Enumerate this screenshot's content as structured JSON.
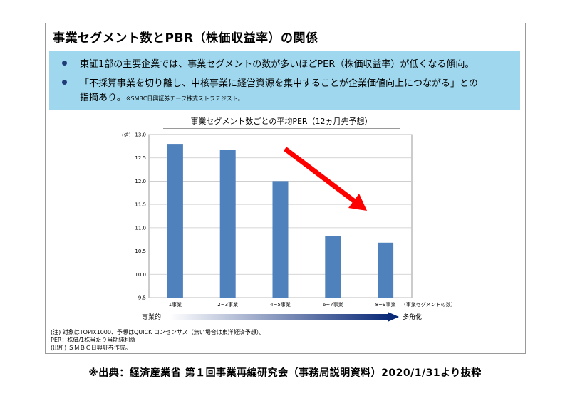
{
  "title": "事業セグメント数とPBR（株価収益率）の関係",
  "bullets": [
    "東証1部の主要企業では、事業セグメントの数が多いほどPER（株価収益率）が低くなる傾向。",
    "「不採算事業を切り離し、中核事業に経営資源を集中することが企業価値向上につながる」との",
    "指摘あり。"
  ],
  "bullet_note": "※SMBC日興証券チーフ株式ストラテジスト。",
  "arrow_left_label": "専業的",
  "arrow_right_label": "多角化",
  "notes": [
    "(注)  対象はTOPIX1000、予想はQUICK コンセンサス（無い場合は東洋経済予想）。",
    "       PER：株価/1株当たり当期純利益",
    "(出所)  ＳＭＢＣ日興証券作成。"
  ],
  "source": "※出典：経済産業省 第１回事業再編研究会（事務局説明資料）2020/1/31より抜粋",
  "colors": {
    "bar": "#4f81bd",
    "trend_arrow": "#ff0000",
    "box": "#9fd8ee"
  },
  "chart_data": {
    "type": "bar",
    "title": "事業セグメント数ごとの平均PER（12ヵ月先予想）",
    "y_unit_label": "(倍)",
    "xlabel": "(事業セグメントの数)",
    "categories": [
      "1事業",
      "2~3事業",
      "4~5事業",
      "6~7事業",
      "8~9事業"
    ],
    "values": [
      12.8,
      12.67,
      12.0,
      10.82,
      10.68
    ],
    "ylim": [
      9.5,
      13.0
    ],
    "yticks": [
      "13.0",
      "12.5",
      "12.0",
      "11.5",
      "11.0",
      "10.5",
      "10.0",
      "9.5"
    ],
    "grid": true,
    "annotation": "downward trend arrow"
  }
}
